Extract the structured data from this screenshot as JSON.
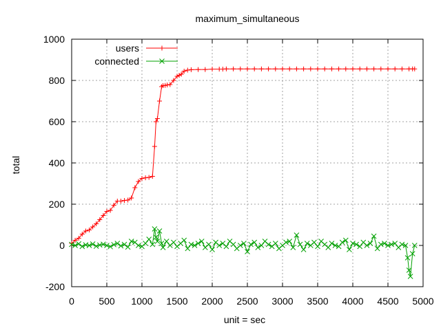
{
  "chart_data": {
    "type": "line",
    "title": "maximum_simultaneous",
    "xlabel": "unit = sec",
    "ylabel": "total",
    "xlim": [
      0,
      5000
    ],
    "ylim": [
      -200,
      1000
    ],
    "xticks": [
      "0",
      "500",
      "1000",
      "1500",
      "2000",
      "2500",
      "3000",
      "3500",
      "4000",
      "4500",
      "5000"
    ],
    "yticks": [
      "-200",
      "0",
      "200",
      "400",
      "600",
      "800",
      "1000"
    ],
    "grid": true,
    "legend_position": "top-left",
    "series": [
      {
        "name": "users",
        "color": "#ff0000",
        "marker": "plus",
        "x": [
          0,
          50,
          100,
          150,
          200,
          250,
          300,
          350,
          400,
          450,
          500,
          550,
          600,
          650,
          700,
          750,
          800,
          850,
          900,
          950,
          1000,
          1050,
          1100,
          1150,
          1180,
          1200,
          1220,
          1250,
          1280,
          1300,
          1330,
          1360,
          1400,
          1450,
          1500,
          1530,
          1560,
          1600,
          1650,
          1700,
          1800,
          1900,
          2000,
          2100,
          2150,
          2200,
          2300,
          2400,
          2500,
          2600,
          2700,
          2800,
          2900,
          3000,
          3100,
          3200,
          3300,
          3400,
          3500,
          3600,
          3700,
          3800,
          3900,
          4000,
          4100,
          4200,
          4300,
          4400,
          4500,
          4600,
          4700,
          4800,
          4850,
          4880
        ],
        "y": [
          10,
          25,
          35,
          55,
          70,
          75,
          90,
          105,
          125,
          145,
          165,
          170,
          195,
          215,
          215,
          218,
          220,
          230,
          280,
          310,
          325,
          328,
          330,
          335,
          480,
          600,
          615,
          700,
          770,
          775,
          776,
          778,
          780,
          800,
          820,
          825,
          830,
          845,
          850,
          852,
          853,
          853,
          855,
          855,
          855,
          856,
          856,
          856,
          856,
          856,
          856,
          856,
          856,
          856,
          856,
          856,
          856,
          856,
          856,
          856,
          856,
          856,
          856,
          856,
          856,
          856,
          856,
          856,
          856,
          856,
          856,
          856,
          856,
          856
        ]
      },
      {
        "name": "connected",
        "color": "#00a000",
        "marker": "cross",
        "x": [
          0,
          50,
          100,
          150,
          200,
          250,
          300,
          350,
          400,
          450,
          500,
          550,
          600,
          650,
          700,
          750,
          800,
          850,
          900,
          950,
          1000,
          1050,
          1100,
          1150,
          1180,
          1200,
          1220,
          1250,
          1280,
          1300,
          1350,
          1400,
          1450,
          1500,
          1550,
          1600,
          1650,
          1700,
          1750,
          1800,
          1850,
          1900,
          1950,
          2000,
          2050,
          2100,
          2150,
          2200,
          2250,
          2300,
          2350,
          2400,
          2450,
          2500,
          2550,
          2600,
          2650,
          2700,
          2750,
          2800,
          2850,
          2900,
          2950,
          3000,
          3050,
          3100,
          3150,
          3200,
          3250,
          3300,
          3350,
          3400,
          3450,
          3500,
          3550,
          3600,
          3650,
          3700,
          3750,
          3800,
          3850,
          3900,
          3950,
          4000,
          4050,
          4100,
          4150,
          4200,
          4250,
          4300,
          4350,
          4400,
          4450,
          4500,
          4550,
          4600,
          4650,
          4700,
          4750,
          4780,
          4800,
          4820,
          4850,
          4880
        ],
        "y": [
          5,
          0,
          8,
          -5,
          3,
          0,
          7,
          -4,
          2,
          6,
          0,
          -6,
          4,
          10,
          -2,
          5,
          -8,
          20,
          15,
          0,
          -5,
          10,
          30,
          5,
          80,
          40,
          20,
          70,
          10,
          -10,
          20,
          0,
          15,
          -5,
          10,
          25,
          -15,
          5,
          0,
          10,
          20,
          -10,
          5,
          -20,
          15,
          0,
          10,
          -5,
          20,
          5,
          -15,
          0,
          10,
          -30,
          5,
          15,
          -10,
          0,
          20,
          5,
          -5,
          10,
          -15,
          0,
          15,
          20,
          -10,
          50,
          5,
          -20,
          10,
          0,
          15,
          -5,
          20,
          5,
          -10,
          10,
          0,
          -5,
          15,
          25,
          -20,
          10,
          5,
          -5,
          15,
          0,
          10,
          45,
          -15,
          5,
          10,
          0,
          5,
          10,
          -10,
          5,
          0,
          -60,
          -120,
          -150,
          -40,
          0
        ]
      }
    ]
  }
}
